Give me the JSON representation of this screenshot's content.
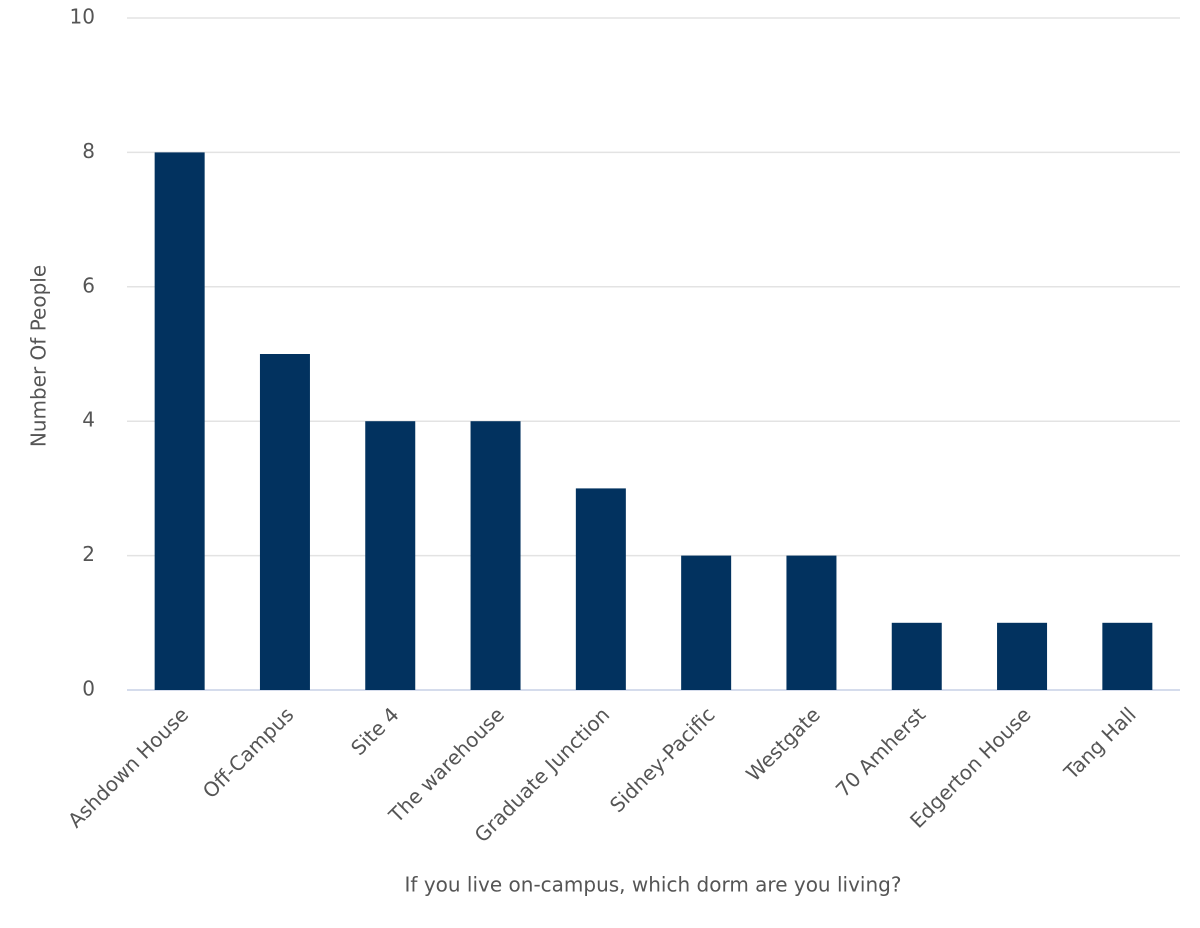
{
  "chart_data": {
    "type": "bar",
    "x_label": "If you live on-campus, which dorm are you living?",
    "y_label": "Number Of People",
    "categories": [
      "Ashdown House",
      "Off-Campus",
      "Site 4",
      "The warehouse",
      "Graduate Junction",
      "Sidney-Pacific",
      "Westgate",
      "70 Amherst",
      "Edgerton House",
      "Tang Hall"
    ],
    "values": [
      8,
      5,
      4,
      4,
      3,
      2,
      2,
      1,
      1,
      1
    ],
    "color": "#02325f",
    "ylim": [
      0,
      10
    ],
    "yticks": [
      0,
      2,
      4,
      6,
      8,
      10
    ],
    "grid": true
  }
}
